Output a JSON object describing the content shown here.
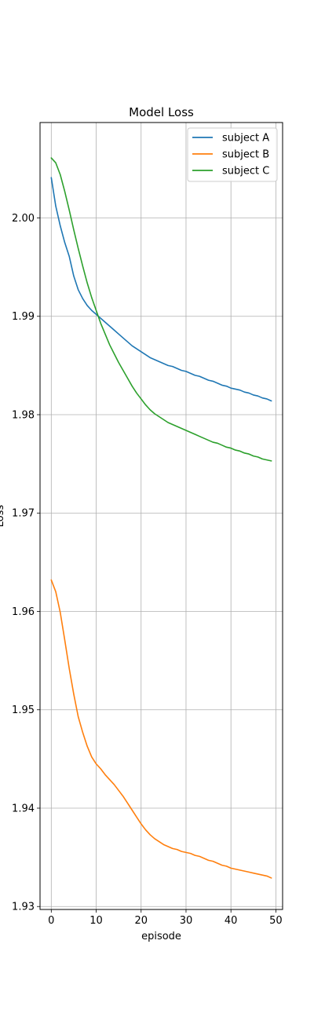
{
  "chart_data": {
    "type": "line",
    "title": "Model Loss",
    "xlabel": "episode",
    "ylabel": "Loss",
    "xlim": [
      -2.5,
      51.5
    ],
    "ylim": [
      1.9297,
      2.0097
    ],
    "xticks": [
      0,
      10,
      20,
      30,
      40,
      50
    ],
    "yticks": [
      1.93,
      1.94,
      1.95,
      1.96,
      1.97,
      1.98,
      1.99,
      2.0
    ],
    "xtick_labels": [
      "0",
      "10",
      "20",
      "30",
      "40",
      "50"
    ],
    "ytick_labels": [
      "1.93",
      "1.94",
      "1.95",
      "1.96",
      "1.97",
      "1.98",
      "1.99",
      "2.00"
    ],
    "grid": true,
    "legend_position": "top-right",
    "x": [
      0,
      1,
      2,
      3,
      4,
      5,
      6,
      7,
      8,
      9,
      10,
      11,
      12,
      13,
      14,
      15,
      16,
      17,
      18,
      19,
      20,
      21,
      22,
      23,
      24,
      25,
      26,
      27,
      28,
      29,
      30,
      31,
      32,
      33,
      34,
      35,
      36,
      37,
      38,
      39,
      40,
      41,
      42,
      43,
      44,
      45,
      46,
      47,
      48,
      49
    ],
    "series": [
      {
        "name": "subject A",
        "color": "#1f77b4",
        "values": [
          2.0041,
          2.0012,
          1.9992,
          1.9975,
          1.9961,
          1.9941,
          1.9927,
          1.9918,
          1.9911,
          1.9906,
          1.9902,
          1.9898,
          1.9894,
          1.989,
          1.9886,
          1.9882,
          1.9878,
          1.9874,
          1.987,
          1.9867,
          1.9864,
          1.9861,
          1.9858,
          1.9856,
          1.9854,
          1.9852,
          1.985,
          1.9849,
          1.9847,
          1.9845,
          1.9844,
          1.9842,
          1.984,
          1.9839,
          1.9837,
          1.9835,
          1.9834,
          1.9832,
          1.983,
          1.9829,
          1.9827,
          1.9826,
          1.9825,
          1.9823,
          1.9822,
          1.982,
          1.9819,
          1.9817,
          1.9816,
          1.9814
        ]
      },
      {
        "name": "subject B",
        "color": "#ff7f0e",
        "values": [
          1.9632,
          1.962,
          1.9599,
          1.9571,
          1.9542,
          1.9516,
          1.9493,
          1.9477,
          1.9463,
          1.9452,
          1.9445,
          1.944,
          1.9434,
          1.9429,
          1.9424,
          1.9418,
          1.9412,
          1.9405,
          1.9398,
          1.9391,
          1.9384,
          1.9378,
          1.9373,
          1.9369,
          1.9366,
          1.9363,
          1.9361,
          1.9359,
          1.9358,
          1.9356,
          1.9355,
          1.9354,
          1.9352,
          1.9351,
          1.9349,
          1.9347,
          1.9346,
          1.9344,
          1.9342,
          1.9341,
          1.9339,
          1.9338,
          1.9337,
          1.9336,
          1.9335,
          1.9334,
          1.9333,
          1.9332,
          1.9331,
          1.9329
        ]
      },
      {
        "name": "subject C",
        "color": "#2ca02c",
        "values": [
          2.0061,
          2.0056,
          2.0044,
          2.0027,
          2.0008,
          1.9988,
          1.9969,
          1.9951,
          1.9934,
          1.9919,
          1.9906,
          1.9893,
          1.9882,
          1.9871,
          1.9862,
          1.9853,
          1.9845,
          1.9837,
          1.9829,
          1.9822,
          1.9816,
          1.981,
          1.9805,
          1.9801,
          1.9798,
          1.9795,
          1.9792,
          1.979,
          1.9788,
          1.9786,
          1.9784,
          1.9782,
          1.978,
          1.9778,
          1.9776,
          1.9774,
          1.9772,
          1.9771,
          1.9769,
          1.9767,
          1.9766,
          1.9764,
          1.9763,
          1.9761,
          1.976,
          1.9758,
          1.9757,
          1.9755,
          1.9754,
          1.9753
        ]
      }
    ]
  }
}
